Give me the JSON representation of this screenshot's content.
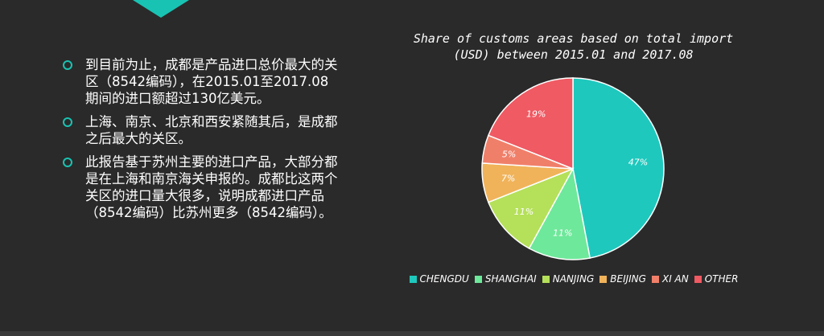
{
  "bullets": [
    "到目前为止，成都是产品进口总价最大的关区（8542编码），在2015.01至2017.08期间的进口额超过130亿美元。",
    "上海、南京、北京和西安紧随其后，是成都之后最大的关区。",
    "此报告基于苏州主要的进口产品，大部分都是在上海和南京海关申报的。成都比这两个关区的进口量大很多，说明成都进口产品（8542编码）比苏州更多（8542编码）。"
  ],
  "chart_data": {
    "type": "pie",
    "title": "Share of customs areas based on total import (USD) between 2015.01 and 2017.08",
    "categories": [
      "CHENGDU",
      "SHANGHAI",
      "NANJING",
      "BEIJING",
      "XI AN",
      "OTHER"
    ],
    "values": [
      47,
      11,
      11,
      7,
      5,
      19
    ],
    "value_labels": [
      "47%",
      "11%",
      "11%",
      "7%",
      "5%",
      "19%"
    ],
    "colors": [
      "#1ec8bd",
      "#6ee89a",
      "#b5e05a",
      "#f0b35a",
      "#f07f6a",
      "#ef5a63"
    ]
  }
}
